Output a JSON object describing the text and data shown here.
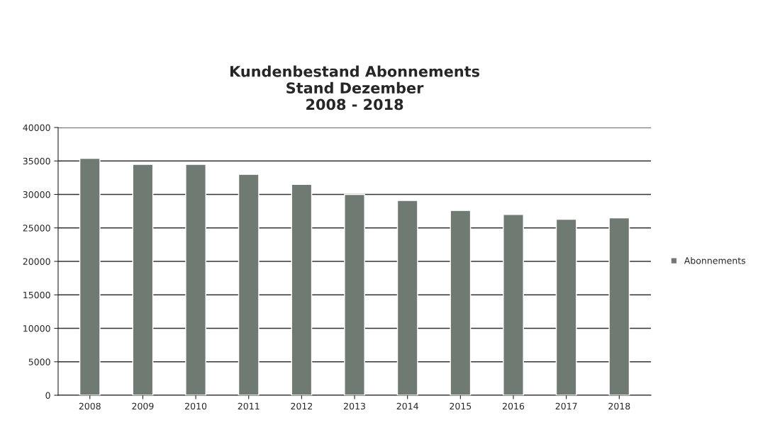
{
  "chart_data": {
    "type": "bar",
    "title": "Kundenbestand Abonnements\nStand Dezember\n2008 - 2018",
    "categories": [
      "2008",
      "2009",
      "2010",
      "2011",
      "2012",
      "2013",
      "2014",
      "2015",
      "2016",
      "2017",
      "2018"
    ],
    "series": [
      {
        "name": "Abonnements",
        "color": "#6f7b72",
        "values": [
          35400,
          34500,
          34500,
          33000,
          31500,
          30000,
          29100,
          27600,
          27000,
          26300,
          26500
        ]
      }
    ],
    "ylim": [
      0,
      40000
    ],
    "yticks": [
      0,
      5000,
      10000,
      15000,
      20000,
      25000,
      30000,
      35000,
      40000
    ],
    "grid": "y",
    "legend": "right"
  }
}
